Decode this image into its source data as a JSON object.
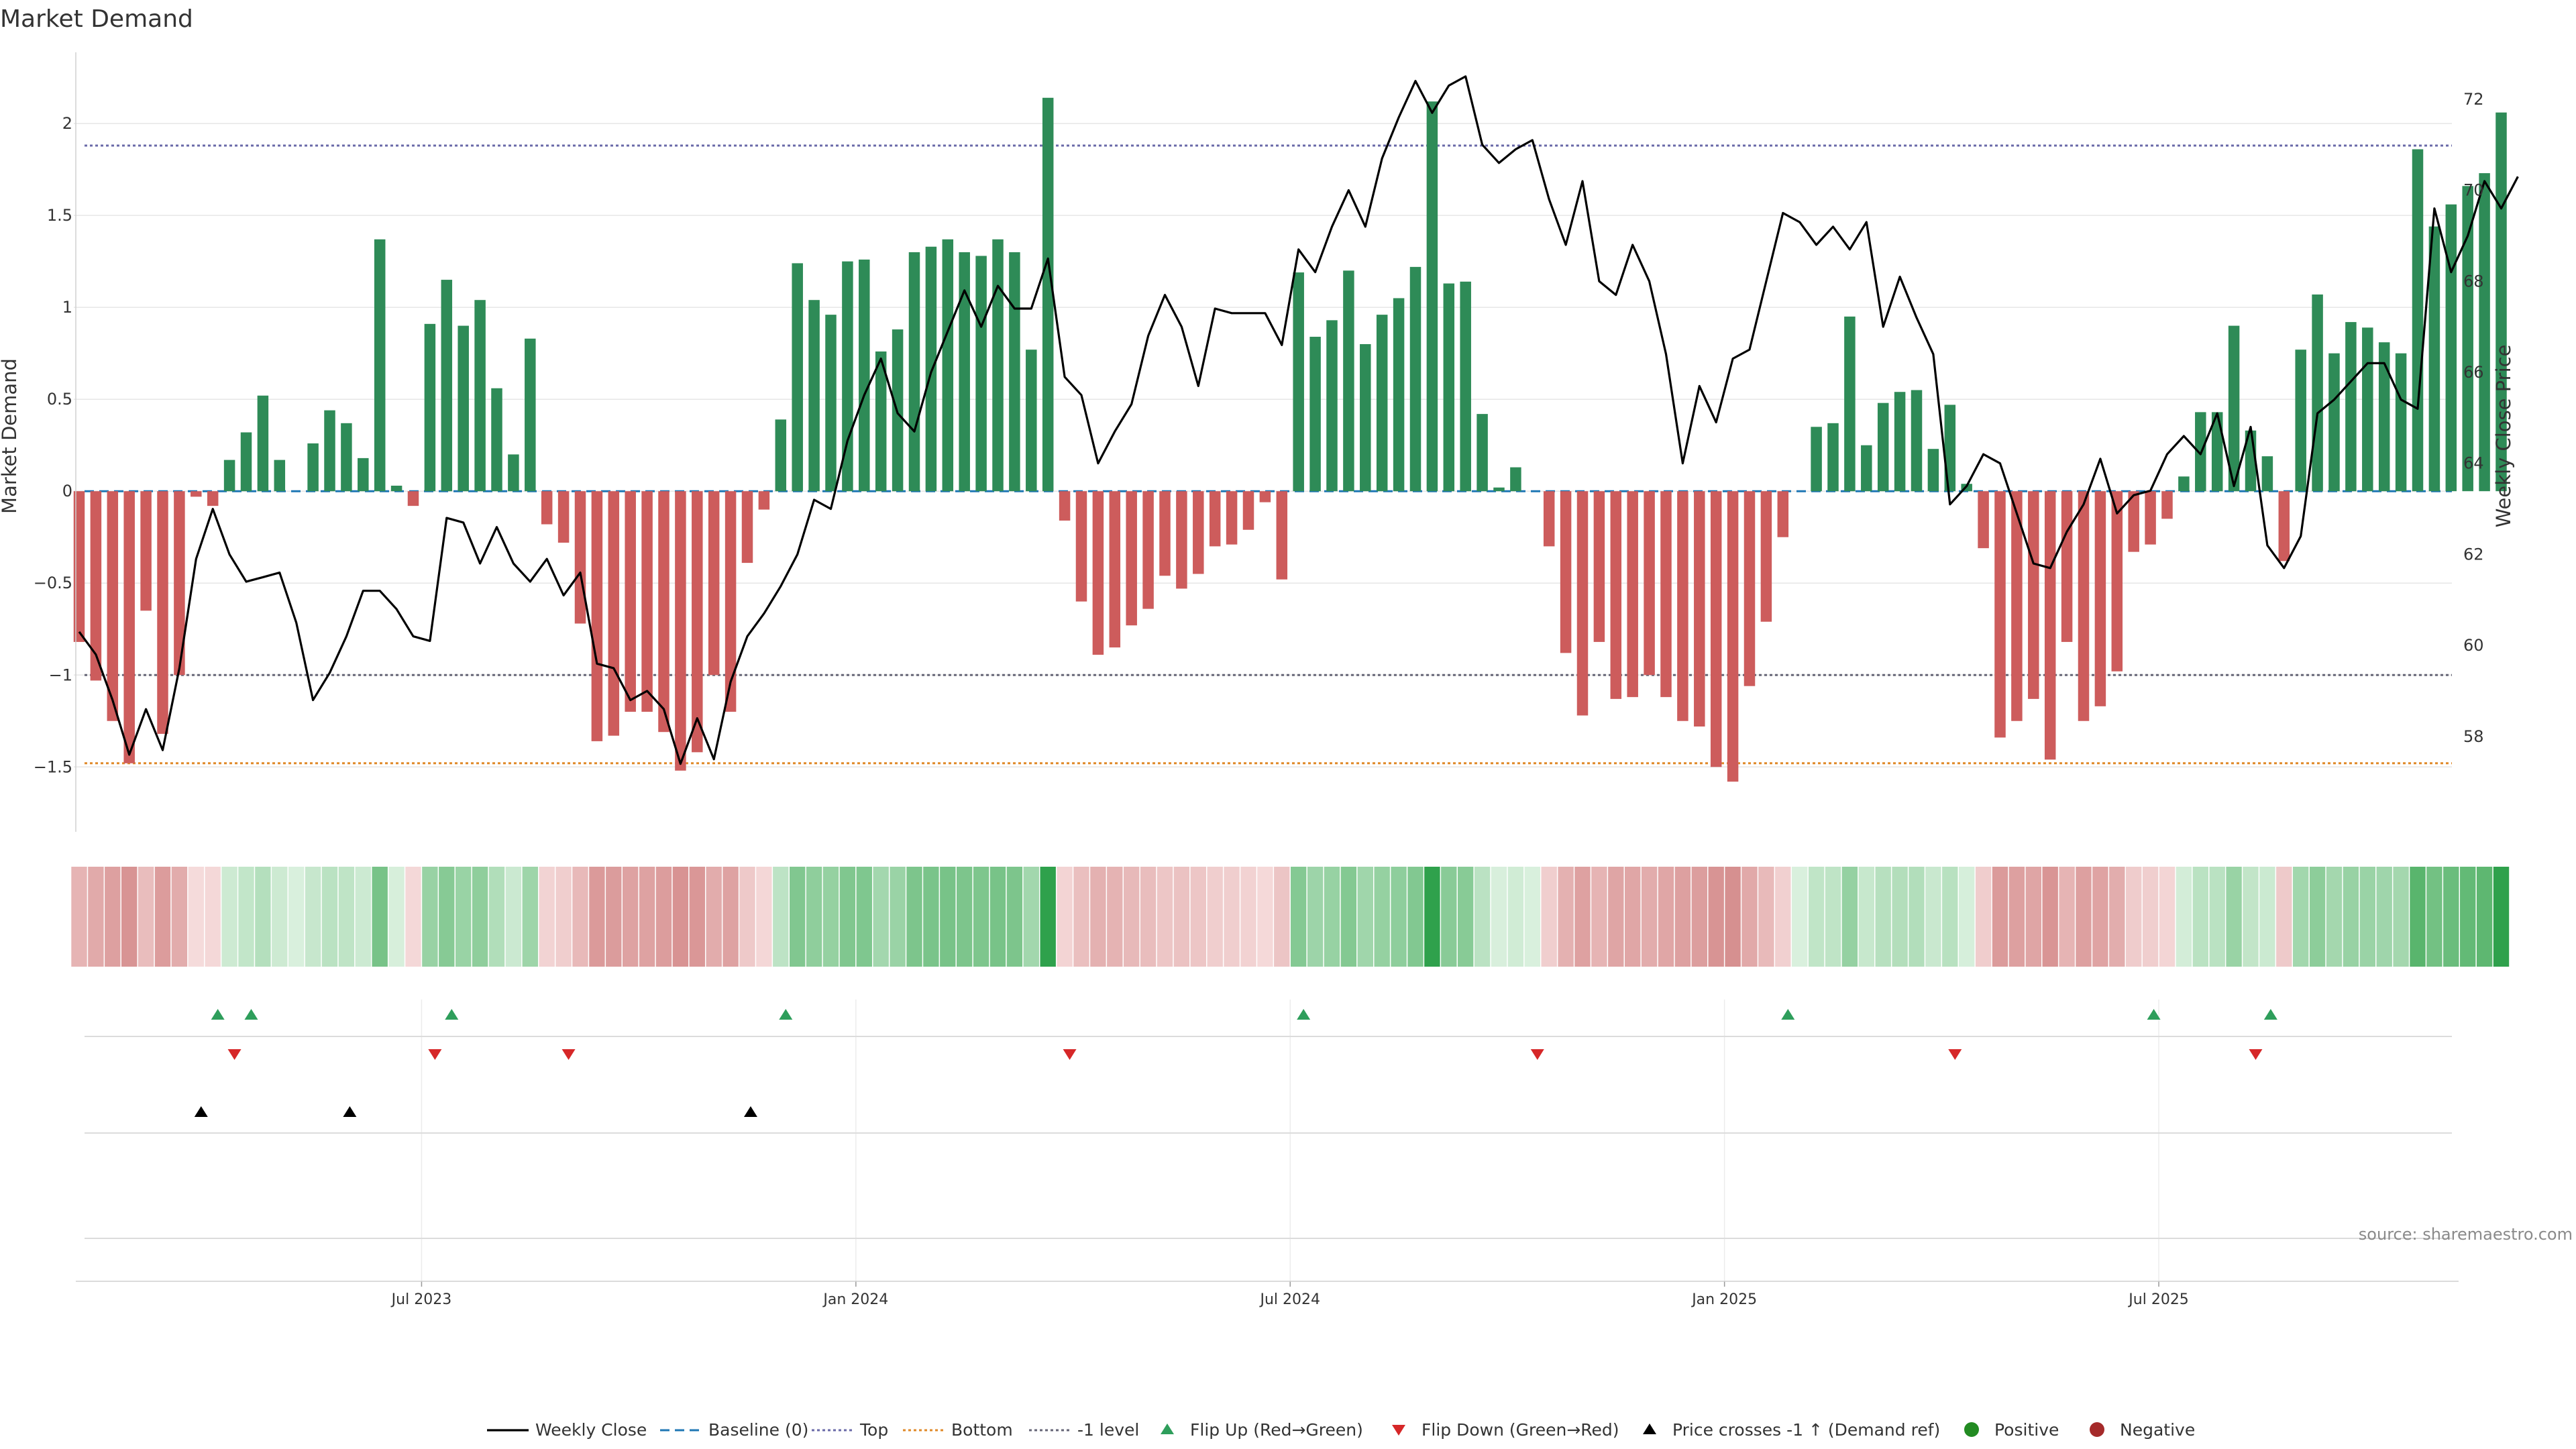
{
  "chart_data": {
    "type": "bar",
    "title": "Market Demand",
    "ylabel": "Market Demand",
    "y2label": "Weekly Close Price",
    "ylim": [
      -1.78,
      2.38
    ],
    "y2lim": [
      56.2,
      73.0
    ],
    "yticks": [
      2,
      1.5,
      1,
      0.5,
      0,
      -0.5,
      -1,
      -1.5
    ],
    "ytick_labels": [
      "2",
      "1.5",
      "1",
      "0.5",
      "0",
      "−0.5",
      "−1",
      "−1.5"
    ],
    "y2ticks": [
      72,
      70,
      68,
      66,
      64,
      62,
      60,
      58
    ],
    "y2tick_labels": [
      "72",
      "70",
      "68",
      "66",
      "64",
      "62",
      "60",
      "58"
    ],
    "reference_lines": {
      "top": 1.88,
      "bottom": -1.48,
      "minus_one": -1.0,
      "baseline": 0
    },
    "x_ticks": [
      {
        "label": "Jul 2023",
        "week": 20.5
      },
      {
        "label": "Jan 2024",
        "week": 46.5
      },
      {
        "label": "Jul 2024",
        "week": 72.5
      },
      {
        "label": "Jan 2025",
        "week": 98.5
      },
      {
        "label": "Jul 2025",
        "week": 124.5
      }
    ],
    "demand": [
      -0.82,
      -1.03,
      -1.25,
      -1.48,
      -0.65,
      -1.32,
      -1.0,
      -0.03,
      -0.08,
      0.17,
      0.32,
      0.52,
      0.17,
      0.0,
      0.26,
      0.44,
      0.37,
      0.18,
      1.37,
      0.03,
      -0.08,
      0.91,
      1.15,
      0.9,
      1.04,
      0.56,
      0.2,
      0.83,
      -0.18,
      -0.28,
      -0.72,
      -1.36,
      -1.33,
      -1.2,
      -1.2,
      -1.31,
      -1.52,
      -1.42,
      -1.0,
      -1.2,
      -0.39,
      -0.1,
      0.39,
      1.24,
      1.04,
      0.96,
      1.25,
      1.26,
      0.76,
      0.88,
      1.3,
      1.33,
      1.37,
      1.3,
      1.28,
      1.37,
      1.3,
      0.77,
      2.14,
      -0.16,
      -0.6,
      -0.89,
      -0.85,
      -0.73,
      -0.64,
      -0.46,
      -0.53,
      -0.45,
      -0.3,
      -0.29,
      -0.21,
      -0.06,
      -0.48,
      1.19,
      0.84,
      0.93,
      1.2,
      0.8,
      0.96,
      1.05,
      1.22,
      2.12,
      1.13,
      1.14,
      0.42,
      0.02,
      0.13,
      0.0,
      -0.3,
      -0.88,
      -1.22,
      -0.82,
      -1.13,
      -1.12,
      -1.0,
      -1.12,
      -1.25,
      -1.28,
      -1.5,
      -1.58,
      -1.06,
      -0.71,
      -0.25,
      0.0,
      0.35,
      0.37,
      0.95,
      0.25,
      0.48,
      0.54,
      0.55,
      0.23,
      0.47,
      0.04,
      -0.31,
      -1.34,
      -1.25,
      -1.13,
      -1.46,
      -0.82,
      -1.25,
      -1.17,
      -0.98,
      -0.33,
      -0.29,
      -0.15,
      0.08,
      0.43,
      0.43,
      0.9,
      0.33,
      0.19,
      -0.38,
      0.77,
      1.07,
      0.75,
      0.92,
      0.89,
      0.81,
      0.75,
      1.86,
      1.44,
      1.56,
      1.66,
      1.73,
      2.06
    ],
    "weekly_close": [
      60.3,
      59.8,
      58.8,
      57.6,
      58.6,
      57.7,
      59.5,
      61.9,
      63.0,
      62.0,
      61.4,
      61.5,
      61.6,
      60.5,
      58.8,
      59.4,
      60.2,
      61.2,
      61.2,
      60.8,
      60.2,
      60.1,
      62.8,
      62.7,
      61.8,
      62.6,
      61.8,
      61.4,
      61.9,
      61.1,
      61.6,
      59.6,
      59.5,
      58.8,
      59.0,
      58.6,
      57.4,
      58.4,
      57.5,
      59.2,
      60.2,
      60.7,
      61.3,
      62.0,
      63.2,
      63.0,
      64.5,
      65.5,
      66.3,
      65.1,
      64.7,
      66.0,
      66.9,
      67.8,
      67.0,
      67.9,
      67.4,
      67.4,
      68.5,
      65.9,
      65.5,
      64.0,
      64.7,
      65.3,
      66.8,
      67.7,
      67.0,
      65.7,
      67.4,
      67.3,
      67.3,
      67.3,
      66.6,
      68.7,
      68.2,
      69.2,
      70.0,
      69.2,
      70.7,
      71.6,
      72.4,
      71.7,
      72.3,
      72.5,
      71.0,
      70.6,
      70.9,
      71.1,
      69.8,
      68.8,
      70.2,
      68.0,
      67.7,
      68.8,
      68.0,
      66.4,
      64.0,
      65.7,
      64.9,
      66.3,
      66.5,
      68.0,
      69.5,
      69.3,
      68.8,
      69.2,
      68.7,
      69.3,
      67.0,
      68.1,
      67.2,
      66.4,
      63.1,
      63.5,
      64.2,
      64.0,
      62.9,
      61.8,
      61.7,
      62.5,
      63.1,
      64.1,
      62.9,
      63.3,
      63.4,
      64.2,
      64.6,
      64.2,
      65.1,
      63.5,
      64.8,
      62.2,
      61.7,
      62.4,
      65.1,
      65.4,
      65.8,
      66.2,
      66.2,
      65.4,
      65.2,
      69.6,
      68.2,
      69.0,
      70.2,
      69.6,
      70.3
    ],
    "flip_up_weeks": [
      8.3,
      10.3,
      22.3,
      42.3,
      73.3,
      102.3,
      124.2,
      131.2
    ],
    "flip_down_weeks": [
      9.3,
      21.3,
      29.3,
      59.3,
      87.3,
      112.3,
      130.3
    ],
    "price_cross_weeks": [
      7.3,
      16.2,
      40.2
    ],
    "colors": {
      "bar_positive": "#2e8b57",
      "bar_negative": "#cd5c5c",
      "line": "#000000",
      "baseline": "#1f77b4",
      "top": "#6a6aa8",
      "bottom": "#e08a2a",
      "minus_one": "#666677",
      "flip_up": "#2e9e5b",
      "flip_down": "#d62728",
      "cross": "#000000",
      "grid": "#e6e6e6"
    },
    "legend": [
      {
        "label": "Weekly Close",
        "kind": "line"
      },
      {
        "label": "Baseline (0)",
        "kind": "baseline"
      },
      {
        "label": "Top",
        "kind": "top"
      },
      {
        "label": "Bottom",
        "kind": "bottom"
      },
      {
        "label": "-1 level",
        "kind": "minus_one"
      },
      {
        "label": "Flip Up (Red→Green)",
        "kind": "flip_up"
      },
      {
        "label": "Flip Down (Green→Red)",
        "kind": "flip_down"
      },
      {
        "label": "Price crosses -1 ↑ (Demand ref)",
        "kind": "cross"
      },
      {
        "label": "Positive",
        "kind": "positive"
      },
      {
        "label": "Negative",
        "kind": "negative"
      }
    ],
    "source_note": "source: sharemaestro.com"
  }
}
